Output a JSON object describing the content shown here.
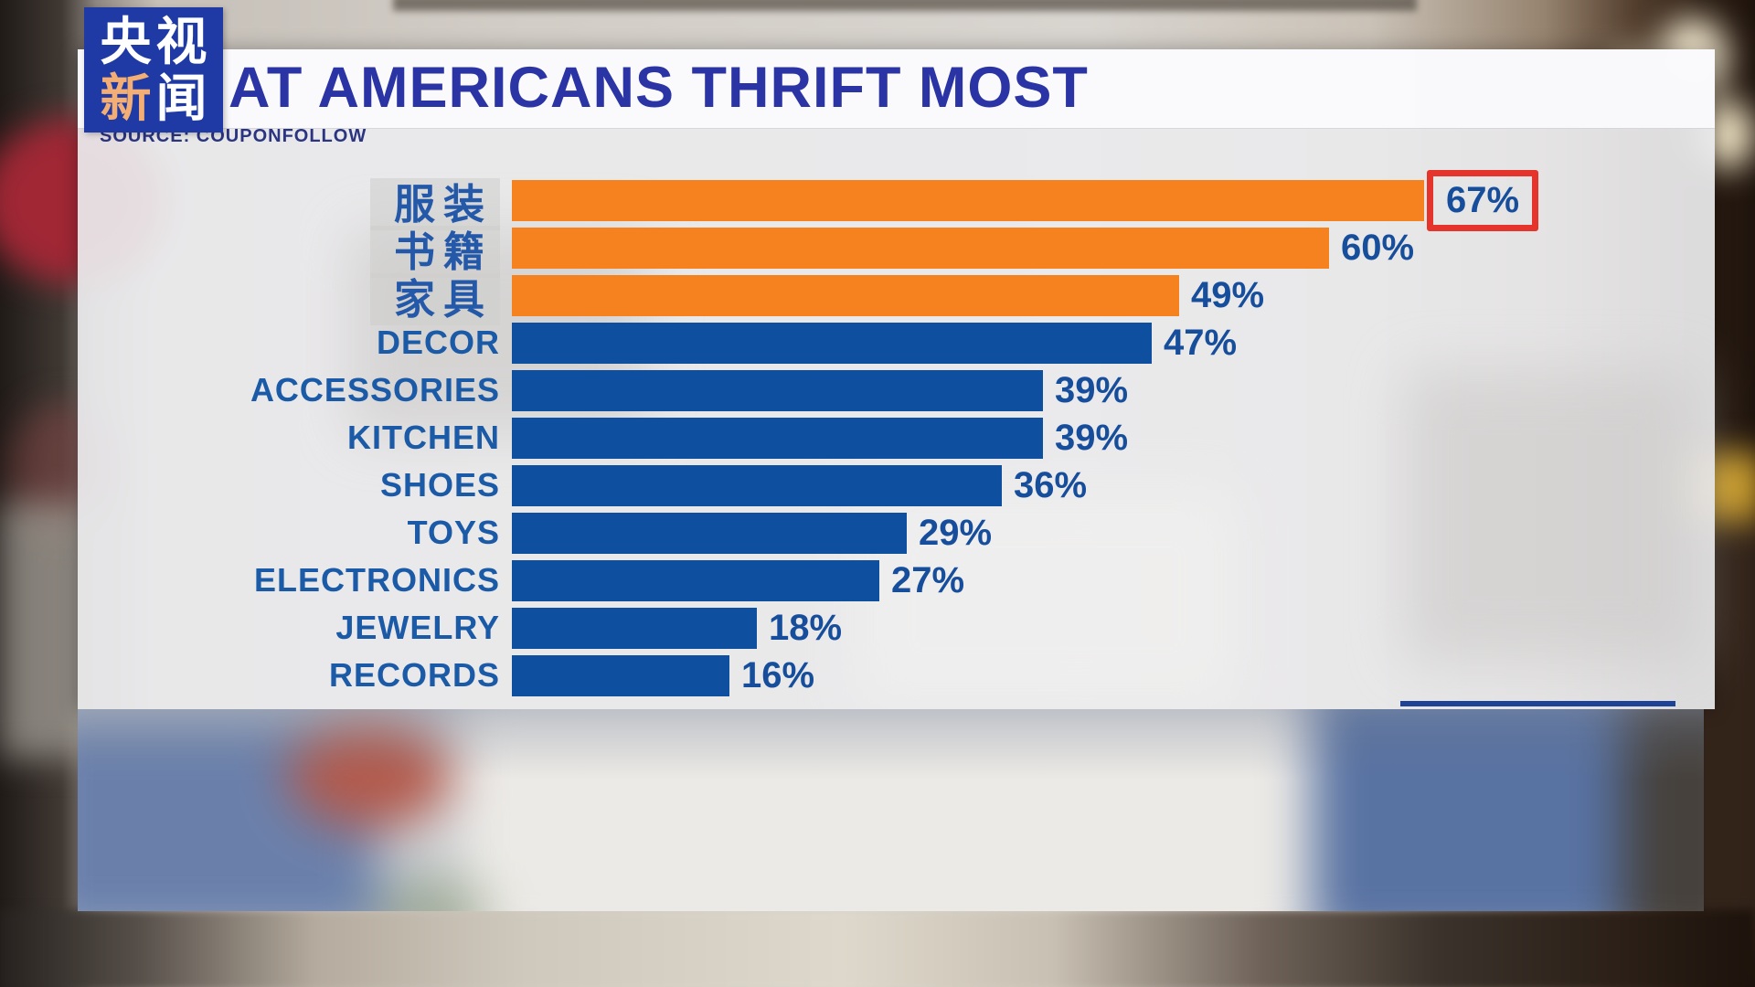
{
  "logo": {
    "line1": "央视",
    "line2_accent": "新",
    "line2_rest": "闻"
  },
  "header": {
    "title": "AT AMERICANS THRIFT MOST",
    "source": "SOURCE: COUPONFOLLOW"
  },
  "chart_data": {
    "type": "bar",
    "orientation": "horizontal",
    "title": "AT AMERICANS THRIFT MOST",
    "source": "SOURCE: COUPONFOLLOW",
    "unit": "%",
    "xlim": [
      0,
      100
    ],
    "categories": [
      "服装",
      "书籍",
      "家具",
      "DECOR",
      "ACCESSORIES",
      "KITCHEN",
      "SHOES",
      "TOYS",
      "ELECTRONICS",
      "JEWELRY",
      "RECORDS"
    ],
    "values": [
      67,
      60,
      49,
      47,
      39,
      39,
      36,
      29,
      27,
      18,
      16
    ],
    "value_labels": [
      "67%",
      "60%",
      "49%",
      "47%",
      "39%",
      "39%",
      "36%",
      "29%",
      "27%",
      "18%",
      "16%"
    ],
    "bar_colors": [
      "#F5821F",
      "#F5821F",
      "#F5821F",
      "#0E509F",
      "#0E509F",
      "#0E509F",
      "#0E509F",
      "#0E509F",
      "#0E509F",
      "#0E509F",
      "#0E509F"
    ],
    "highlighted_index": 0,
    "highlight_style": "red-box",
    "legend": null,
    "grid": false
  },
  "colors": {
    "bar_orange": "#F5821F",
    "bar_blue": "#0E509F",
    "title_blue": "#2A34A4",
    "label_blue": "#1A5AA6",
    "value_blue": "#174E9C",
    "highlight_red": "#E5342B",
    "logo_bg": "#1F3AA5",
    "logo_accent": "#F2AE74"
  }
}
